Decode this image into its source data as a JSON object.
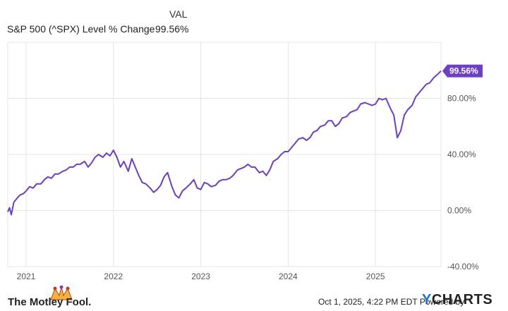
{
  "header": {
    "column_label": "VAL",
    "series_name": "S&P 500 (^SPX) Level % Change",
    "series_value": "99.56%"
  },
  "footer": {
    "date_text": "Oct 1, 2025, 4:22 PM EDT Powered by",
    "ycharts_y": "Y",
    "ycharts_rest": "CHARTS",
    "brand_text": "The Motley Fool."
  },
  "colors": {
    "line": "#6c3fc5",
    "grid": "#e4e4e4",
    "accent": "#6c3fc5"
  },
  "chart_data": {
    "type": "line",
    "title": "S&P 500 (^SPX) Level % Change",
    "xlabel": "",
    "ylabel": "",
    "x_range": [
      2020.79,
      2025.75
    ],
    "ylim": [
      -40,
      120
    ],
    "y_ticks": [
      {
        "value": 80,
        "label": "80.00%"
      },
      {
        "value": 40,
        "label": "40.00%"
      },
      {
        "value": 0,
        "label": "0.00%"
      },
      {
        "value": -40,
        "label": "-40.00%"
      }
    ],
    "x_ticks": [
      {
        "value": 2021,
        "label": "2021"
      },
      {
        "value": 2022,
        "label": "2022"
      },
      {
        "value": 2023,
        "label": "2023"
      },
      {
        "value": 2024,
        "label": "2024"
      },
      {
        "value": 2025,
        "label": "2025"
      }
    ],
    "last_value_label": "99.56%",
    "series": [
      {
        "name": "S&P 500 (^SPX) Level % Change",
        "points": [
          [
            2020.79,
            -1
          ],
          [
            2020.81,
            2
          ],
          [
            2020.83,
            -3
          ],
          [
            2020.86,
            6
          ],
          [
            2020.9,
            9
          ],
          [
            2020.93,
            11
          ],
          [
            2020.97,
            12
          ],
          [
            2021.0,
            14
          ],
          [
            2021.04,
            17
          ],
          [
            2021.08,
            16
          ],
          [
            2021.12,
            19
          ],
          [
            2021.17,
            19
          ],
          [
            2021.21,
            22
          ],
          [
            2021.25,
            24
          ],
          [
            2021.29,
            23
          ],
          [
            2021.33,
            26
          ],
          [
            2021.37,
            26
          ],
          [
            2021.42,
            28
          ],
          [
            2021.46,
            29
          ],
          [
            2021.5,
            31
          ],
          [
            2021.54,
            31
          ],
          [
            2021.58,
            33
          ],
          [
            2021.62,
            33
          ],
          [
            2021.67,
            35
          ],
          [
            2021.71,
            31
          ],
          [
            2021.75,
            34
          ],
          [
            2021.79,
            38
          ],
          [
            2021.83,
            40
          ],
          [
            2021.88,
            38
          ],
          [
            2021.92,
            41
          ],
          [
            2021.96,
            39
          ],
          [
            2022.0,
            43
          ],
          [
            2022.04,
            38
          ],
          [
            2022.08,
            31
          ],
          [
            2022.12,
            35
          ],
          [
            2022.17,
            28
          ],
          [
            2022.21,
            37
          ],
          [
            2022.25,
            31
          ],
          [
            2022.29,
            25
          ],
          [
            2022.33,
            20
          ],
          [
            2022.37,
            19
          ],
          [
            2022.42,
            16
          ],
          [
            2022.46,
            13
          ],
          [
            2022.5,
            15
          ],
          [
            2022.54,
            18
          ],
          [
            2022.58,
            24
          ],
          [
            2022.62,
            27
          ],
          [
            2022.67,
            17
          ],
          [
            2022.71,
            11
          ],
          [
            2022.75,
            9
          ],
          [
            2022.79,
            14
          ],
          [
            2022.83,
            16
          ],
          [
            2022.88,
            19
          ],
          [
            2022.92,
            22
          ],
          [
            2022.96,
            16
          ],
          [
            2023.0,
            15
          ],
          [
            2023.04,
            20
          ],
          [
            2023.08,
            19
          ],
          [
            2023.12,
            17
          ],
          [
            2023.17,
            18
          ],
          [
            2023.21,
            21
          ],
          [
            2023.25,
            22
          ],
          [
            2023.29,
            22
          ],
          [
            2023.33,
            23
          ],
          [
            2023.37,
            25
          ],
          [
            2023.42,
            29
          ],
          [
            2023.46,
            30
          ],
          [
            2023.5,
            31
          ],
          [
            2023.54,
            33
          ],
          [
            2023.58,
            31
          ],
          [
            2023.62,
            31
          ],
          [
            2023.67,
            27
          ],
          [
            2023.71,
            28
          ],
          [
            2023.75,
            25
          ],
          [
            2023.79,
            29
          ],
          [
            2023.83,
            35
          ],
          [
            2023.88,
            37
          ],
          [
            2023.92,
            40
          ],
          [
            2023.96,
            42
          ],
          [
            2024.0,
            42
          ],
          [
            2024.04,
            45
          ],
          [
            2024.08,
            48
          ],
          [
            2024.12,
            51
          ],
          [
            2024.17,
            52
          ],
          [
            2024.21,
            50
          ],
          [
            2024.25,
            52
          ],
          [
            2024.29,
            56
          ],
          [
            2024.33,
            57
          ],
          [
            2024.37,
            60
          ],
          [
            2024.42,
            61
          ],
          [
            2024.46,
            64
          ],
          [
            2024.5,
            64
          ],
          [
            2024.54,
            60
          ],
          [
            2024.58,
            62
          ],
          [
            2024.62,
            66
          ],
          [
            2024.67,
            67
          ],
          [
            2024.71,
            70
          ],
          [
            2024.75,
            71
          ],
          [
            2024.79,
            72
          ],
          [
            2024.83,
            76
          ],
          [
            2024.88,
            77
          ],
          [
            2024.92,
            76
          ],
          [
            2024.96,
            75
          ],
          [
            2025.0,
            76
          ],
          [
            2025.04,
            80
          ],
          [
            2025.08,
            79
          ],
          [
            2025.12,
            80
          ],
          [
            2025.17,
            73
          ],
          [
            2025.21,
            68
          ],
          [
            2025.25,
            52
          ],
          [
            2025.29,
            57
          ],
          [
            2025.33,
            68
          ],
          [
            2025.37,
            72
          ],
          [
            2025.42,
            75
          ],
          [
            2025.46,
            81
          ],
          [
            2025.5,
            84
          ],
          [
            2025.54,
            87
          ],
          [
            2025.58,
            90
          ],
          [
            2025.62,
            91
          ],
          [
            2025.67,
            95
          ],
          [
            2025.71,
            97
          ],
          [
            2025.75,
            99.56
          ]
        ]
      }
    ]
  }
}
